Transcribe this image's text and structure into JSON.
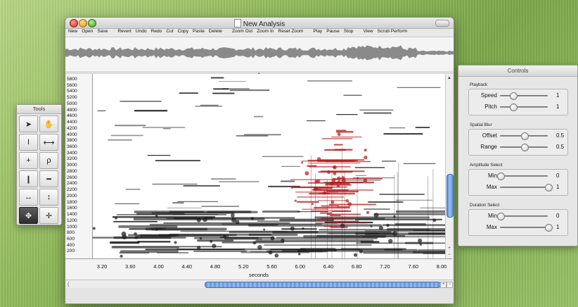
{
  "window": {
    "title": "New Analysis"
  },
  "toolbar": {
    "groups": [
      [
        "New",
        "Open",
        "Save"
      ],
      [
        "Revert",
        "Undo",
        "Redo",
        "Cut",
        "Copy",
        "Paste",
        "Delete"
      ],
      [
        "Zoom Out",
        "Zoom In",
        "Reset Zoom"
      ],
      [
        "Play",
        "Pause",
        "Stop"
      ],
      [
        "View",
        "Scrub Perform"
      ]
    ]
  },
  "spectrogram": {
    "y_ticks": [
      "5800",
      "5600",
      "5400",
      "5200",
      "5000",
      "4800",
      "4600",
      "4400",
      "4200",
      "4000",
      "3800",
      "3600",
      "3400",
      "3200",
      "3000",
      "2800",
      "2600",
      "2400",
      "2200",
      "2000",
      "1800",
      "1600",
      "1400",
      "1200",
      "1000",
      "800",
      "600",
      "400",
      "200"
    ],
    "x_ticks": [
      "3.20",
      "3.60",
      "4.00",
      "4.40",
      "4.80",
      "5.20",
      "5.60",
      "6.00",
      "6.40",
      "6.80",
      "7.20",
      "7.60",
      "8.00"
    ],
    "x_label": "seconds",
    "selection_color": "#b51616",
    "partial_color": "#1a1a1a"
  },
  "tools": {
    "title": "Tools",
    "items": [
      {
        "name": "arrow-select-tool",
        "icon": "arrow-icon",
        "glyph": "➤"
      },
      {
        "name": "hand-pan-tool",
        "icon": "hand-icon",
        "glyph": "✋"
      },
      {
        "name": "time-cursor-tool",
        "icon": "i-beam-icon",
        "glyph": "I"
      },
      {
        "name": "time-range-tool",
        "icon": "range-icon",
        "glyph": "⟷"
      },
      {
        "name": "crosshair-tool",
        "icon": "crosshair-icon",
        "glyph": "+"
      },
      {
        "name": "lasso-tool",
        "icon": "lasso-icon",
        "glyph": "ρ"
      },
      {
        "name": "vertical-stretch-tool",
        "icon": "vertical-bar-icon",
        "glyph": "❙"
      },
      {
        "name": "horizontal-stretch-tool",
        "icon": "horizontal-bar-icon",
        "glyph": "━"
      },
      {
        "name": "horizontal-move-tool",
        "icon": "horizontal-arrows-icon",
        "glyph": "↔"
      },
      {
        "name": "vertical-move-tool",
        "icon": "vertical-arrows-icon",
        "glyph": "↕"
      },
      {
        "name": "move-all-tool",
        "icon": "move-icon",
        "glyph": "✥",
        "active": true
      },
      {
        "name": "small-move-tool",
        "icon": "small-move-icon",
        "glyph": "✛"
      }
    ]
  },
  "controls": {
    "title": "Controls",
    "sections": [
      {
        "label": "Playback",
        "rows": [
          {
            "label": "Speed",
            "value": "1",
            "level": 0.27
          },
          {
            "label": "Pitch",
            "value": "1",
            "level": 0.27
          }
        ]
      },
      {
        "label": "Spatial Blur",
        "rows": [
          {
            "label": "Offset",
            "value": "0.5",
            "level": 0.5
          },
          {
            "label": "Range",
            "value": "0.5",
            "level": 0.5
          }
        ]
      },
      {
        "label": "Amplitude Select",
        "rows": [
          {
            "label": "Min",
            "value": "0",
            "level": 0.0
          },
          {
            "label": "Max",
            "value": "1",
            "level": 1.0
          }
        ]
      },
      {
        "label": "Duration Select",
        "rows": [
          {
            "label": "Min",
            "value": "0",
            "level": 0.0
          },
          {
            "label": "Max",
            "value": "1",
            "level": 1.0
          }
        ]
      }
    ]
  },
  "scroll": {
    "vertical_position": 0.73,
    "vertical_visible": 0.25,
    "horizontal_position": 0.37,
    "horizontal_visible": 0.63
  }
}
